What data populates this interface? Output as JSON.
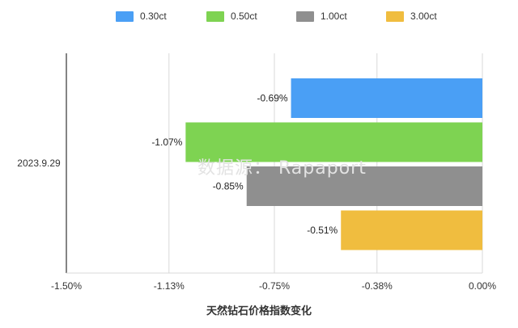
{
  "chart_data": {
    "type": "bar",
    "orientation": "horizontal",
    "categories": [
      "2023.9.29"
    ],
    "series": [
      {
        "name": "0.30ct",
        "values": [
          -0.69
        ],
        "color": "#4a9ff5",
        "label": "-0.69%"
      },
      {
        "name": "0.50ct",
        "values": [
          -1.07
        ],
        "color": "#7ed352",
        "label": "-1.07%"
      },
      {
        "name": "1.00ct",
        "values": [
          -0.85
        ],
        "color": "#8f8f8f",
        "label": "-0.85%"
      },
      {
        "name": "3.00ct",
        "values": [
          -0.51
        ],
        "color": "#f0bd3f",
        "label": "-0.51%"
      }
    ],
    "xticks": [
      {
        "value": -1.5,
        "label": "-1.50%"
      },
      {
        "value": -1.13,
        "label": "-1.13%"
      },
      {
        "value": -0.75,
        "label": "-0.75%"
      },
      {
        "value": -0.38,
        "label": "-0.38%"
      },
      {
        "value": 0,
        "label": "0.00%"
      }
    ],
    "xlim": [
      -1.5,
      0
    ],
    "xlabel": "天然钻石价格指数变化",
    "ylabel": "",
    "title": "",
    "legend_position": "top",
    "grid": "vertical",
    "watermark": "数据源： Rapaport"
  }
}
